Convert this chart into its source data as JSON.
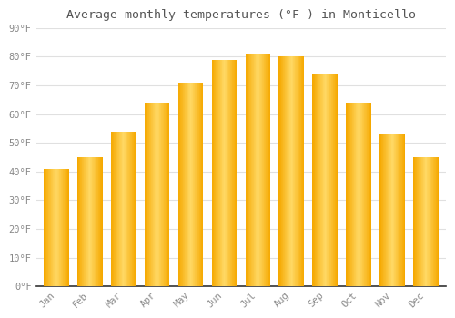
{
  "title": "Average monthly temperatures (°F ) in Monticello",
  "months": [
    "Jan",
    "Feb",
    "Mar",
    "Apr",
    "May",
    "Jun",
    "Jul",
    "Aug",
    "Sep",
    "Oct",
    "Nov",
    "Dec"
  ],
  "values": [
    41,
    45,
    54,
    64,
    71,
    79,
    81,
    80,
    74,
    64,
    53,
    45
  ],
  "bar_color_edge": "#F5A800",
  "bar_color_center": "#FFD966",
  "background_color": "#FFFFFF",
  "plot_bg_color": "#FFFFFF",
  "grid_color": "#E0E0E0",
  "tick_label_color": "#888888",
  "title_color": "#555555",
  "ylim": [
    0,
    90
  ],
  "yticks": [
    0,
    10,
    20,
    30,
    40,
    50,
    60,
    70,
    80,
    90
  ],
  "ytick_labels": [
    "0°F",
    "10°F",
    "20°F",
    "30°F",
    "40°F",
    "50°F",
    "60°F",
    "70°F",
    "80°F",
    "90°F"
  ],
  "bar_width": 0.75,
  "n_gradient_steps": 40
}
